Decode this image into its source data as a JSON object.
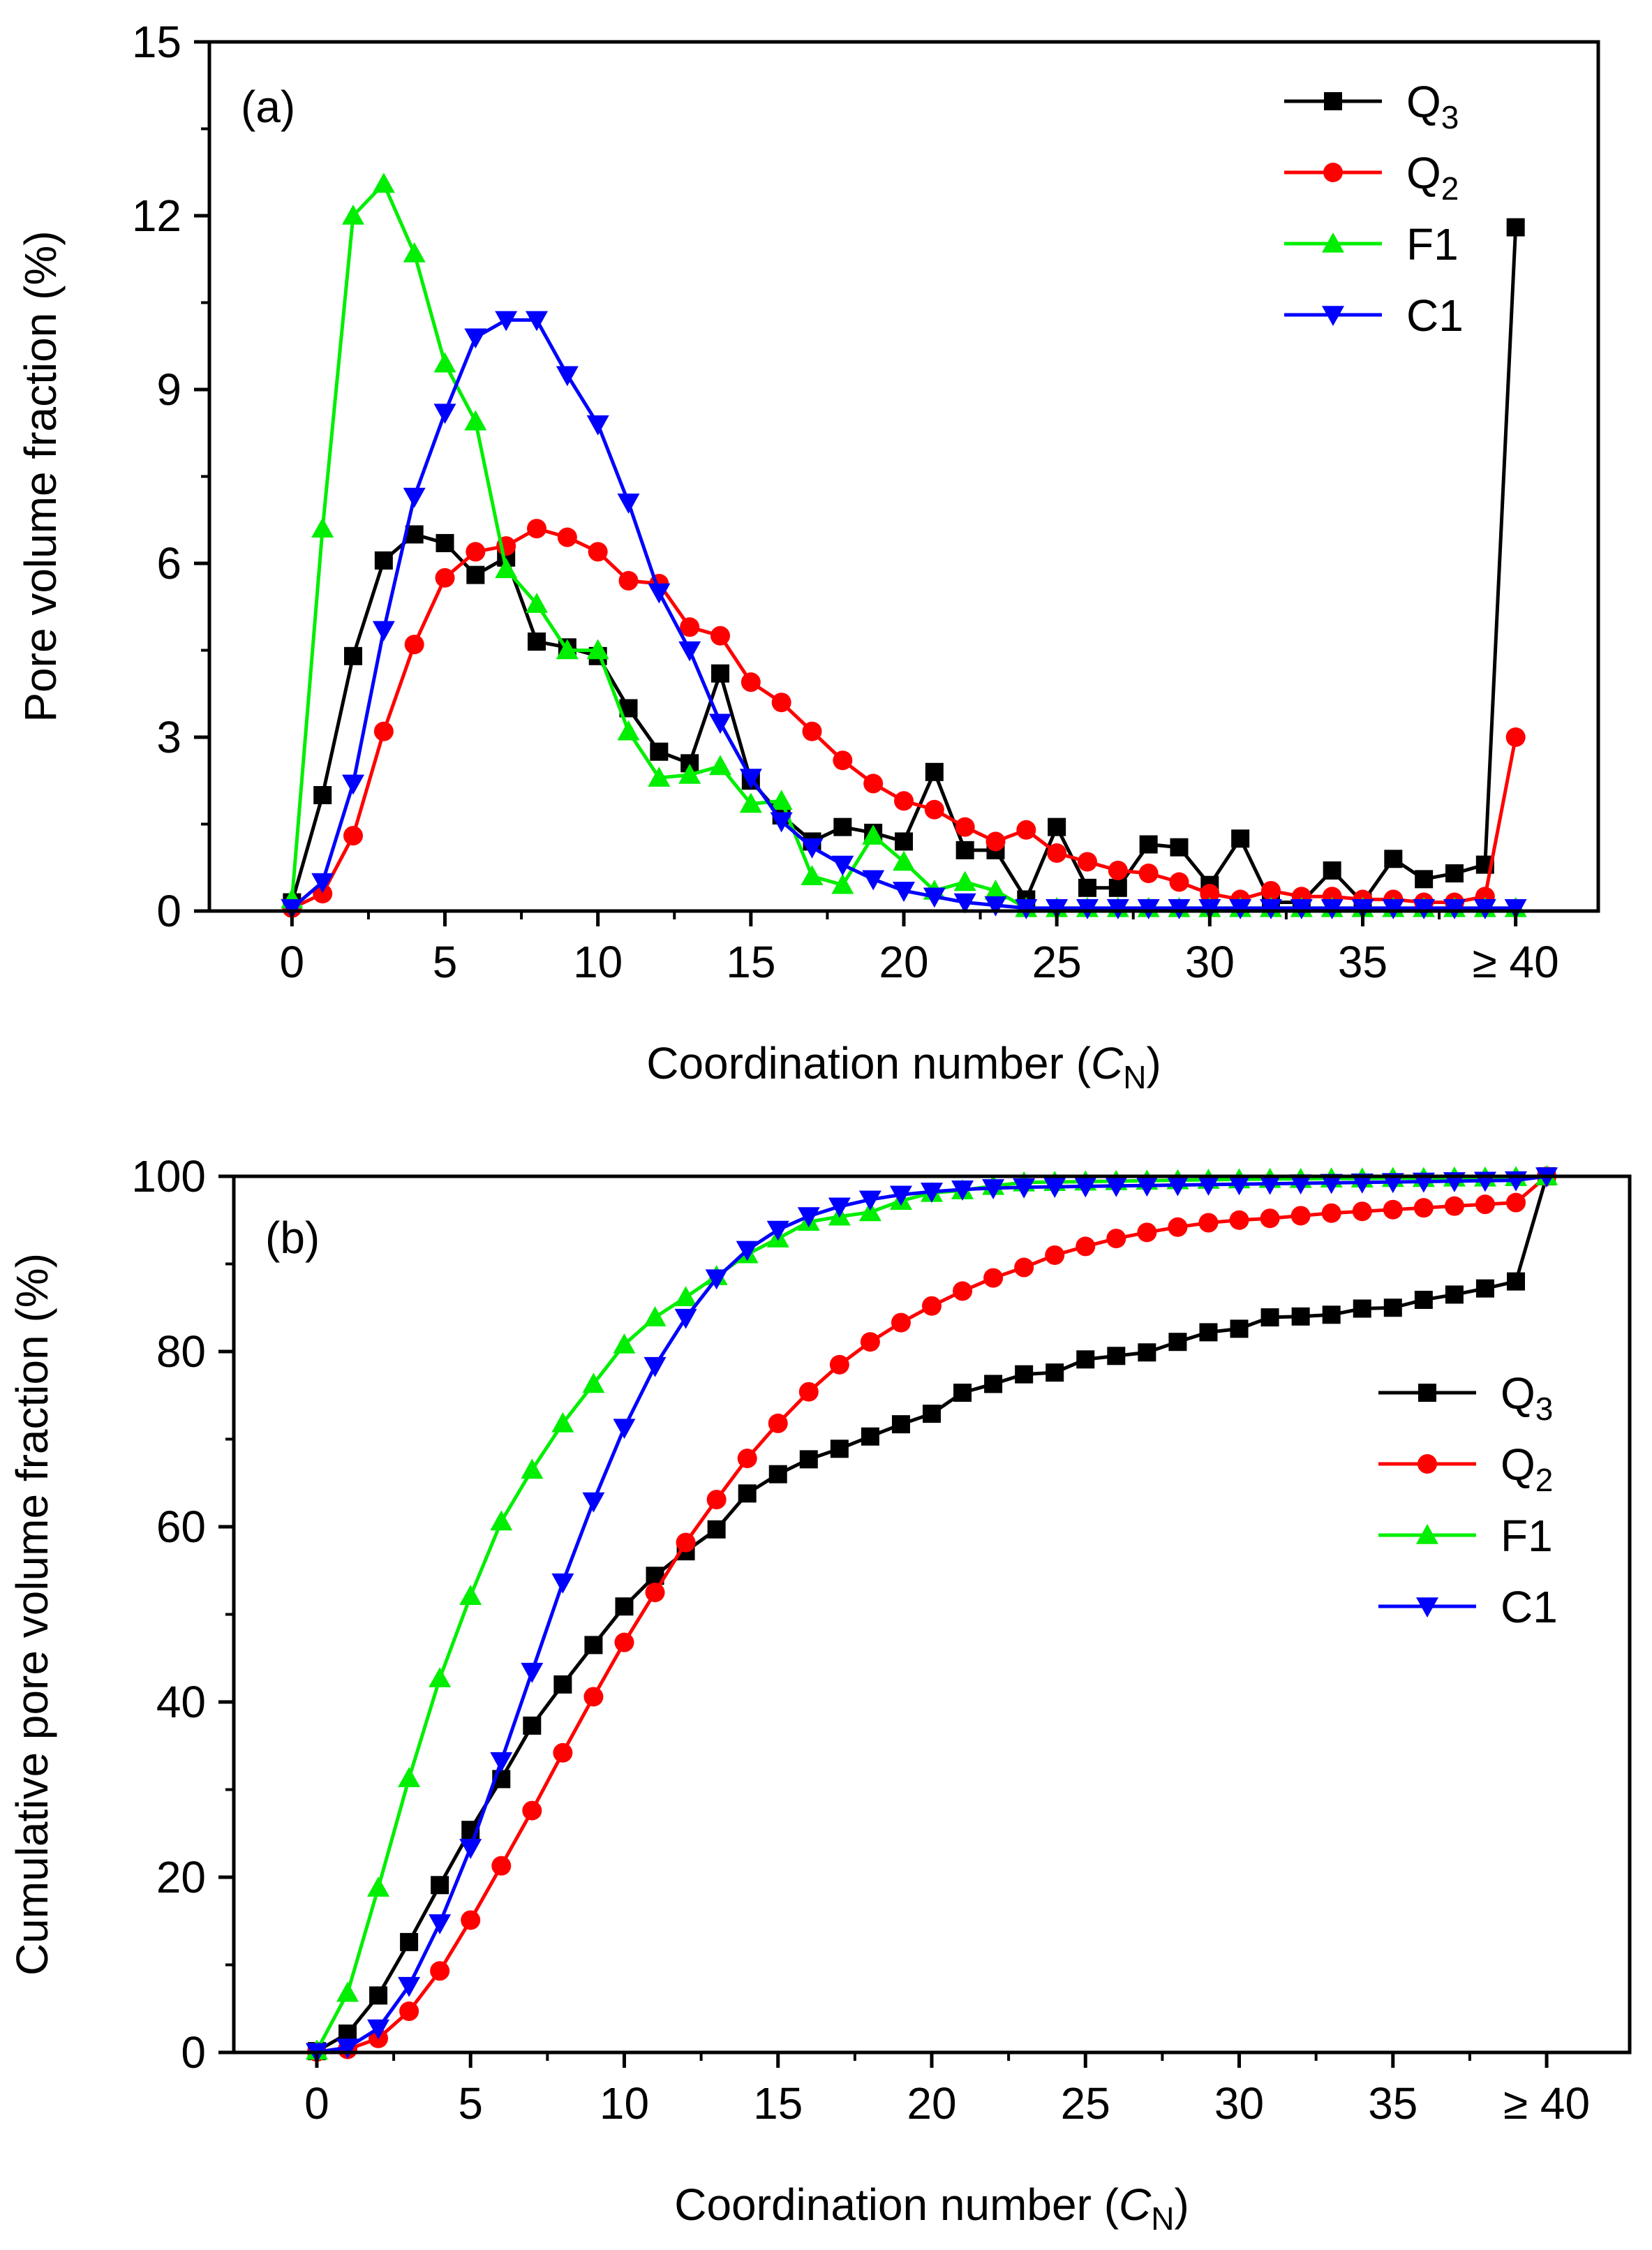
{
  "chart_data": [
    {
      "type": "line",
      "panel_label": "(a)",
      "xlabel": "Coordination number (",
      "xlabel_italic": "C",
      "xlabel_sub": "N",
      "xlabel_close": ")",
      "ylabel": "Pore volume fraction (%)",
      "xlim": [
        -2.7,
        42.7
      ],
      "ylim": [
        0,
        15
      ],
      "x_ticks": [
        0,
        5,
        10,
        15,
        20,
        25,
        30,
        35,
        40
      ],
      "x_tick_labels": [
        "0",
        "5",
        "10",
        "15",
        "20",
        "25",
        "30",
        "35",
        "≥ 40"
      ],
      "y_ticks": [
        0,
        3,
        6,
        9,
        12,
        15
      ],
      "y_tick_labels": [
        "0",
        "3",
        "6",
        "9",
        "12",
        "15"
      ],
      "legend_position": "top-right",
      "series": [
        {
          "name": "Q",
          "sub": "3",
          "color": "#000000",
          "marker": "square",
          "x": [
            0,
            1,
            2,
            3,
            4,
            5,
            6,
            7,
            8,
            9,
            10,
            11,
            12,
            13,
            14,
            15,
            16,
            17,
            18,
            19,
            20,
            21,
            22,
            23,
            24,
            25,
            26,
            27,
            28,
            29,
            30,
            31,
            32,
            33,
            34,
            35,
            36,
            37,
            38,
            39,
            40
          ],
          "y": [
            0.15,
            2.0,
            4.4,
            6.05,
            6.5,
            6.35,
            5.8,
            6.1,
            4.65,
            4.55,
            4.4,
            3.5,
            2.75,
            2.55,
            4.1,
            2.25,
            1.65,
            1.2,
            1.45,
            1.35,
            1.2,
            2.4,
            1.05,
            1.05,
            0.2,
            1.45,
            0.4,
            0.4,
            1.15,
            1.1,
            0.45,
            1.25,
            0.15,
            0.15,
            0.7,
            0.15,
            0.9,
            0.55,
            0.65,
            0.8,
            11.8
          ]
        },
        {
          "name": "Q",
          "sub": "2",
          "color": "#ff0000",
          "marker": "circle",
          "x": [
            0,
            1,
            2,
            3,
            4,
            5,
            6,
            7,
            8,
            9,
            10,
            11,
            12,
            13,
            14,
            15,
            16,
            17,
            18,
            19,
            20,
            21,
            22,
            23,
            24,
            25,
            26,
            27,
            28,
            29,
            30,
            31,
            32,
            33,
            34,
            35,
            36,
            37,
            38,
            39,
            40
          ],
          "y": [
            0.05,
            0.3,
            1.3,
            3.1,
            4.6,
            5.75,
            6.2,
            6.3,
            6.6,
            6.45,
            6.2,
            5.7,
            5.65,
            4.9,
            4.75,
            3.95,
            3.6,
            3.1,
            2.6,
            2.2,
            1.9,
            1.75,
            1.45,
            1.2,
            1.4,
            1.0,
            0.85,
            0.7,
            0.65,
            0.5,
            0.3,
            0.2,
            0.35,
            0.25,
            0.25,
            0.2,
            0.2,
            0.15,
            0.15,
            0.25,
            3.0
          ]
        },
        {
          "name": "F1",
          "sub": "",
          "color": "#00ee00",
          "marker": "triangle-up",
          "x": [
            0,
            1,
            2,
            3,
            4,
            5,
            6,
            7,
            8,
            9,
            10,
            11,
            12,
            13,
            14,
            15,
            16,
            17,
            18,
            19,
            20,
            21,
            22,
            23,
            24,
            25,
            26,
            27,
            28,
            29,
            30,
            31,
            32,
            33,
            34,
            35,
            36,
            37,
            38,
            39,
            40
          ],
          "y": [
            0.2,
            6.6,
            12.0,
            12.55,
            11.35,
            9.45,
            8.45,
            5.9,
            5.3,
            4.5,
            4.5,
            3.1,
            2.3,
            2.35,
            2.5,
            1.85,
            1.9,
            0.6,
            0.45,
            1.3,
            0.85,
            0.35,
            0.5,
            0.35,
            0.05,
            0.05,
            0.05,
            0.05,
            0.05,
            0.05,
            0.05,
            0.05,
            0.05,
            0.05,
            0.05,
            0.05,
            0.05,
            0.05,
            0.05,
            0.05,
            0.05
          ]
        },
        {
          "name": "C1",
          "sub": "",
          "color": "#0000ff",
          "marker": "triangle-down",
          "x": [
            0,
            1,
            2,
            3,
            4,
            5,
            6,
            7,
            8,
            9,
            10,
            11,
            12,
            13,
            14,
            15,
            16,
            17,
            18,
            19,
            20,
            21,
            22,
            23,
            24,
            25,
            26,
            27,
            28,
            29,
            30,
            31,
            32,
            33,
            34,
            35,
            36,
            37,
            38,
            39,
            40
          ],
          "y": [
            0.05,
            0.5,
            2.2,
            4.85,
            7.15,
            8.6,
            9.9,
            10.2,
            10.2,
            9.25,
            8.4,
            7.05,
            5.5,
            4.5,
            3.25,
            2.3,
            1.55,
            1.1,
            0.8,
            0.55,
            0.35,
            0.25,
            0.15,
            0.1,
            0.05,
            0.05,
            0.05,
            0.05,
            0.05,
            0.05,
            0.05,
            0.05,
            0.05,
            0.05,
            0.05,
            0.05,
            0.05,
            0.05,
            0.05,
            0.05,
            0.05
          ]
        }
      ]
    },
    {
      "type": "line",
      "panel_label": "(b)",
      "xlabel": "Coordination number (",
      "xlabel_italic": "C",
      "xlabel_sub": "N",
      "xlabel_close": ")",
      "ylabel": "Cumulative pore volume fraction (%)",
      "xlim": [
        -2.7,
        42.7
      ],
      "ylim": [
        0,
        100
      ],
      "x_ticks": [
        0,
        5,
        10,
        15,
        20,
        25,
        30,
        35,
        40
      ],
      "x_tick_labels": [
        "0",
        "5",
        "10",
        "15",
        "20",
        "25",
        "30",
        "35",
        "≥ 40"
      ],
      "y_ticks": [
        0,
        20,
        40,
        60,
        80,
        100
      ],
      "y_tick_labels": [
        "0",
        "20",
        "40",
        "60",
        "80",
        "100"
      ],
      "legend_position": "center-right",
      "series": [
        {
          "name": "Q",
          "sub": "3",
          "color": "#000000",
          "marker": "square",
          "x": [
            0,
            1,
            2,
            3,
            4,
            5,
            6,
            7,
            8,
            9,
            10,
            11,
            12,
            13,
            14,
            15,
            16,
            17,
            18,
            19,
            20,
            21,
            22,
            23,
            24,
            25,
            26,
            27,
            28,
            29,
            30,
            31,
            32,
            33,
            34,
            35,
            36,
            37,
            38,
            39,
            40
          ],
          "y": [
            0.15,
            2.15,
            6.5,
            12.6,
            19.1,
            25.4,
            31.2,
            37.3,
            42,
            46.5,
            50.9,
            54.4,
            57.2,
            59.7,
            63.8,
            66,
            67.7,
            68.9,
            70.3,
            71.7,
            72.9,
            75.3,
            76.3,
            77.4,
            77.6,
            79.1,
            79.5,
            79.9,
            81.1,
            82.2,
            82.6,
            83.9,
            84,
            84.2,
            84.9,
            85,
            85.9,
            86.5,
            87.2,
            88,
            100
          ]
        },
        {
          "name": "Q",
          "sub": "2",
          "color": "#ff0000",
          "marker": "circle",
          "x": [
            0,
            1,
            2,
            3,
            4,
            5,
            6,
            7,
            8,
            9,
            10,
            11,
            12,
            13,
            14,
            15,
            16,
            17,
            18,
            19,
            20,
            21,
            22,
            23,
            24,
            25,
            26,
            27,
            28,
            29,
            30,
            31,
            32,
            33,
            34,
            35,
            36,
            37,
            38,
            39,
            40
          ],
          "y": [
            0.05,
            0.35,
            1.6,
            4.7,
            9.3,
            15.1,
            21.3,
            27.6,
            34.2,
            40.6,
            46.8,
            52.5,
            58.2,
            63.1,
            67.8,
            71.8,
            75.4,
            78.5,
            81.1,
            83.3,
            85.2,
            86.9,
            88.4,
            89.6,
            91,
            92,
            92.9,
            93.6,
            94.2,
            94.7,
            95,
            95.2,
            95.5,
            95.8,
            96,
            96.2,
            96.4,
            96.6,
            96.8,
            97,
            100
          ]
        },
        {
          "name": "F1",
          "sub": "",
          "color": "#00ee00",
          "marker": "triangle-up",
          "x": [
            0,
            1,
            2,
            3,
            4,
            5,
            6,
            7,
            8,
            9,
            10,
            11,
            12,
            13,
            14,
            15,
            16,
            17,
            18,
            19,
            20,
            21,
            22,
            23,
            24,
            25,
            26,
            27,
            28,
            29,
            30,
            31,
            32,
            33,
            34,
            35,
            36,
            37,
            38,
            39,
            40
          ],
          "y": [
            0.2,
            6.8,
            18.8,
            31.3,
            42.7,
            52.1,
            60.6,
            66.5,
            71.8,
            76.3,
            80.8,
            83.9,
            86.2,
            88.6,
            91.1,
            92.9,
            94.8,
            95.4,
            95.9,
            97.2,
            98.1,
            98.4,
            98.9,
            99.3,
            99.35,
            99.4,
            99.45,
            99.5,
            99.55,
            99.6,
            99.65,
            99.7,
            99.7,
            99.75,
            99.75,
            99.8,
            99.8,
            99.85,
            99.85,
            99.9,
            100
          ]
        },
        {
          "name": "C1",
          "sub": "",
          "color": "#0000ff",
          "marker": "triangle-down",
          "x": [
            0,
            1,
            2,
            3,
            4,
            5,
            6,
            7,
            8,
            9,
            10,
            11,
            12,
            13,
            14,
            15,
            16,
            17,
            18,
            19,
            20,
            21,
            22,
            23,
            24,
            25,
            26,
            27,
            28,
            29,
            30,
            31,
            32,
            33,
            34,
            35,
            36,
            37,
            38,
            39,
            40
          ],
          "y": [
            0.05,
            0.55,
            2.75,
            7.6,
            14.75,
            23.35,
            33.25,
            43.45,
            53.65,
            62.9,
            71.3,
            78.35,
            83.85,
            88.35,
            91.6,
            93.9,
            95.45,
            96.55,
            97.35,
            97.9,
            98.25,
            98.5,
            98.65,
            98.75,
            98.8,
            98.85,
            98.9,
            98.95,
            99,
            99.05,
            99.1,
            99.15,
            99.2,
            99.25,
            99.3,
            99.35,
            99.4,
            99.45,
            99.5,
            99.55,
            100
          ]
        }
      ]
    }
  ]
}
